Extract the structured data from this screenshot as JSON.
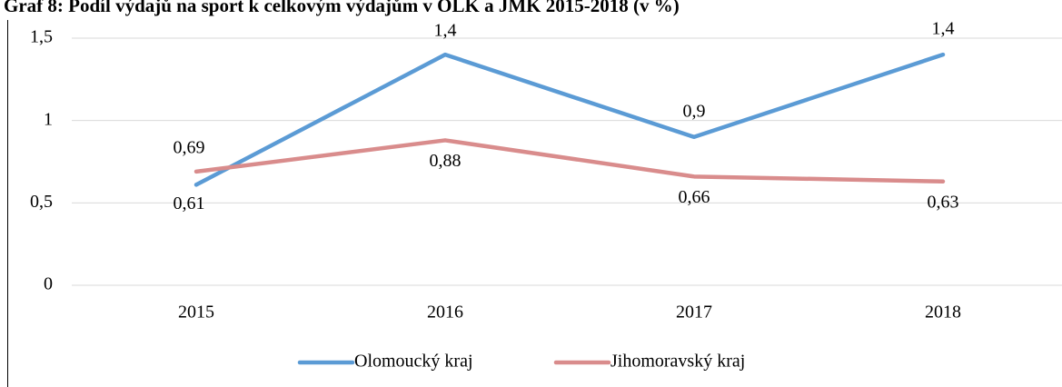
{
  "chart_data": {
    "type": "line",
    "title": "Graf 8: Podíl výdajů na sport k celkovým výdajům v OLK a JMK 2015-2018 (v %)",
    "categories": [
      "2015",
      "2016",
      "2017",
      "2018"
    ],
    "series": [
      {
        "name": "Olomoucký kraj",
        "color": "#5b9bd5",
        "values": [
          0.61,
          1.4,
          0.9,
          1.4
        ],
        "value_labels": [
          "0,61",
          "1,4",
          "0,9",
          "1,4"
        ]
      },
      {
        "name": "Jihomoravský kraj",
        "color": "#d98c8c",
        "values": [
          0.69,
          0.88,
          0.66,
          0.63
        ],
        "value_labels": [
          "0,69",
          "0,88",
          "0,66",
          "0,63"
        ]
      }
    ],
    "ylim": [
      0,
      1.5
    ],
    "yticks": [
      0,
      {
        "value": 0.5,
        "label": "0,5"
      },
      1,
      {
        "value": 1.5,
        "label": "1,5"
      }
    ],
    "grid": true,
    "legend": "bottom"
  }
}
